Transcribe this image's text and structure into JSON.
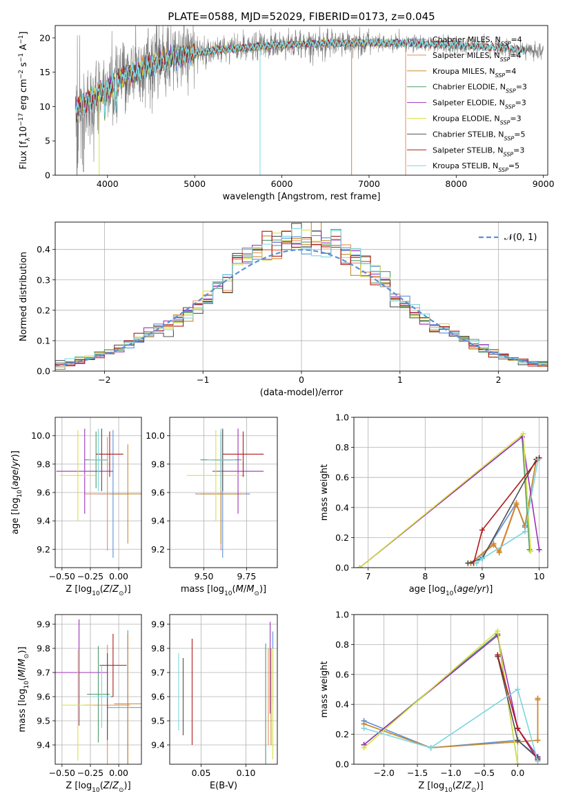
{
  "figure": {
    "title": "PLATE=0588, MJD=52029, FIBERID=0173, z=0.045"
  },
  "models": [
    {
      "name": "Chabrier MILES",
      "nssp": 4,
      "color": "#5a8fd8"
    },
    {
      "name": "Salpeter MILES",
      "nssp": 4,
      "color": "#e88a5c"
    },
    {
      "name": "Kroupa MILES",
      "nssp": 4,
      "color": "#c88a2a"
    },
    {
      "name": "Chabrier ELODIE",
      "nssp": 3,
      "color": "#4f9a6a"
    },
    {
      "name": "Salpeter ELODIE",
      "nssp": 3,
      "color": "#9a32b8"
    },
    {
      "name": "Kroupa ELODIE",
      "nssp": 3,
      "color": "#d8e040"
    },
    {
      "name": "Chabrier STELIB",
      "nssp": 5,
      "color": "#505050"
    },
    {
      "name": "Salpeter STELIB",
      "nssp": 3,
      "color": "#b01818"
    },
    {
      "name": "Kroupa STELIB",
      "nssp": 5,
      "color": "#7ad6e0"
    }
  ],
  "chart_data": [
    {
      "id": "spectrum",
      "type": "line",
      "xlabel": "wavelength [Angstrom, rest frame]",
      "ylabel": "Flux [f_λ10^-17 erg cm^-2 s^-1 A^-1]",
      "xlim": [
        3400,
        9050
      ],
      "ylim": [
        0,
        21.8
      ],
      "xticks": [
        4000,
        5000,
        6000,
        7000,
        8000,
        9000
      ],
      "yticks": [
        0,
        5,
        10,
        15,
        20
      ],
      "legend": "right",
      "continuum": {
        "x": [
          3650,
          3800,
          4000,
          4200,
          4500,
          4800,
          5000,
          5300,
          5600,
          6000,
          6500,
          7000,
          7500,
          8000,
          8500,
          8800
        ],
        "y": [
          9.5,
          11.0,
          12.5,
          14.5,
          16.0,
          17.3,
          17.8,
          18.3,
          18.6,
          19.0,
          19.2,
          19.3,
          19.2,
          18.9,
          18.6,
          18.2
        ]
      },
      "data_range": [
        3630,
        9000
      ]
    },
    {
      "id": "residuals",
      "type": "line",
      "xlabel": "(data-model)/error",
      "ylabel": "Normed distribution",
      "xlim": [
        -2.5,
        2.5
      ],
      "ylim": [
        0,
        0.49
      ],
      "xticks": [
        -2,
        -1,
        0,
        1,
        2
      ],
      "yticks": [
        0.0,
        0.1,
        0.2,
        0.3,
        0.4
      ],
      "legend_label": "𝒩(0, 1)",
      "legend": "top-right"
    },
    {
      "id": "age-vs-z",
      "type": "scatter",
      "xlabel": "Z [log10(Z/Z⊙)]",
      "ylabel": "age  [log10(age/yr)]",
      "xlim": [
        -0.56,
        0.2
      ],
      "ylim": [
        9.07,
        10.13
      ],
      "xticks": [
        -0.5,
        -0.25,
        0.0
      ],
      "xticklabels": [
        "−0.50",
        "−0.25",
        "0.00"
      ],
      "yticks": [
        9.2,
        9.4,
        9.6,
        9.8,
        10.0
      ],
      "points": [
        {
          "x": -0.05,
          "y": 9.59,
          "xerr": 0.14,
          "yerr": 0.45
        },
        {
          "x": -0.1,
          "y": 9.59,
          "xerr": 0.2,
          "yerr": 0.4
        },
        {
          "x": 0.08,
          "y": 9.59,
          "xerr": 0.15,
          "yerr": 0.35
        },
        {
          "x": -0.2,
          "y": 9.83,
          "xerr": 0.1,
          "yerr": 0.2
        },
        {
          "x": -0.3,
          "y": 9.75,
          "xerr": 0.25,
          "yerr": 0.3
        },
        {
          "x": -0.36,
          "y": 9.72,
          "xerr": 0.16,
          "yerr": 0.32
        },
        {
          "x": -0.15,
          "y": 9.83,
          "xerr": 0.05,
          "yerr": 0.22
        },
        {
          "x": -0.08,
          "y": 9.87,
          "xerr": 0.12,
          "yerr": 0.16
        },
        {
          "x": -0.18,
          "y": 9.83,
          "xerr": 0.08,
          "yerr": 0.22
        }
      ]
    },
    {
      "id": "age-vs-mass",
      "type": "scatter",
      "xlabel": "mass [log10(M/M⊙)]",
      "ylabel": "",
      "xlim": [
        9.3,
        9.93
      ],
      "ylim": [
        9.07,
        10.13
      ],
      "xticks": [
        9.5,
        9.75
      ],
      "xticklabels": [
        "9.50",
        "9.75"
      ],
      "yticks": [
        9.2,
        9.4,
        9.6,
        9.8,
        10.0
      ],
      "points": [
        {
          "x": 9.61,
          "y": 9.59,
          "xerr": 0.16,
          "yerr": 0.45
        },
        {
          "x": 9.6,
          "y": 9.59,
          "xerr": 0.14,
          "yerr": 0.4
        },
        {
          "x": 9.6,
          "y": 9.59,
          "xerr": 0.12,
          "yerr": 0.35
        },
        {
          "x": 9.6,
          "y": 9.83,
          "xerr": 0.12,
          "yerr": 0.2
        },
        {
          "x": 9.7,
          "y": 9.75,
          "xerr": 0.15,
          "yerr": 0.3
        },
        {
          "x": 9.57,
          "y": 9.72,
          "xerr": 0.17,
          "yerr": 0.32
        },
        {
          "x": 9.61,
          "y": 9.83,
          "xerr": 0.06,
          "yerr": 0.22
        },
        {
          "x": 9.73,
          "y": 9.87,
          "xerr": 0.12,
          "yerr": 0.16
        },
        {
          "x": 9.6,
          "y": 9.83,
          "xerr": 0.08,
          "yerr": 0.22
        }
      ]
    },
    {
      "id": "mass-weight-vs-age",
      "type": "line",
      "xlabel": "age  [log10(age/yr)]",
      "ylabel": "mass weight",
      "xlim": [
        6.75,
        10.15
      ],
      "ylim": [
        0,
        1.0
      ],
      "xticks": [
        7,
        8,
        9,
        10
      ],
      "yticks": [
        0.0,
        0.2,
        0.4,
        0.6,
        0.8,
        1.0
      ],
      "series": [
        {
          "x": [
            8.8,
            9.0,
            9.6,
            9.75,
            9.95
          ],
          "y": [
            0.03,
            0.07,
            0.43,
            0.27,
            0.72
          ]
        },
        {
          "x": [
            8.8,
            9.2,
            9.3,
            9.6,
            9.75,
            9.95
          ],
          "y": [
            0.03,
            0.15,
            0.11,
            0.43,
            0.28,
            0.72
          ]
        },
        {
          "x": [
            8.8,
            9.2,
            9.3,
            9.6,
            9.75,
            9.95
          ],
          "y": [
            0.03,
            0.16,
            0.1,
            0.42,
            0.28,
            0.72
          ]
        },
        {
          "x": [
            6.85,
            9.7,
            9.83
          ],
          "y": [
            0.0,
            0.87,
            0.12
          ]
        },
        {
          "x": [
            6.85,
            9.7,
            10.0
          ],
          "y": [
            0.0,
            0.87,
            0.12
          ]
        },
        {
          "x": [
            6.85,
            9.72,
            9.85
          ],
          "y": [
            0.0,
            0.89,
            0.11
          ]
        },
        {
          "x": [
            8.75,
            9.0,
            9.95
          ],
          "y": [
            0.03,
            0.06,
            0.72
          ]
        },
        {
          "x": [
            8.85,
            9.0,
            10.0
          ],
          "y": [
            0.03,
            0.25,
            0.73
          ]
        },
        {
          "x": [
            8.9,
            9.0,
            9.75,
            9.98
          ],
          "y": [
            0.03,
            0.06,
            0.24,
            0.72
          ]
        }
      ]
    },
    {
      "id": "mass-vs-z",
      "type": "scatter",
      "xlabel": "Z [log10(Z/Z⊙)]",
      "ylabel": "mass [log10(M/M⊙)]",
      "xlim": [
        -0.56,
        0.2
      ],
      "ylim": [
        9.32,
        9.94
      ],
      "xticks": [
        -0.5,
        -0.25,
        0.0
      ],
      "xticklabels": [
        "−0.50",
        "−0.25",
        "0.00"
      ],
      "yticks": [
        9.4,
        9.5,
        9.6,
        9.7,
        9.8,
        9.9
      ],
      "points": [
        {
          "x": 0.08,
          "y": 9.555,
          "xerr": 0.18,
          "yerr": 0.32
        },
        {
          "x": -0.1,
          "y": 9.565,
          "xerr": 0.2,
          "yerr": 0.25
        },
        {
          "x": 0.08,
          "y": 9.57,
          "xerr": 0.12,
          "yerr": 0.29
        },
        {
          "x": -0.18,
          "y": 9.61,
          "xerr": 0.1,
          "yerr": 0.2
        },
        {
          "x": -0.35,
          "y": 9.7,
          "xerr": 0.25,
          "yerr": 0.22
        },
        {
          "x": -0.36,
          "y": 9.565,
          "xerr": 0.14,
          "yerr": 0.23
        },
        {
          "x": -0.1,
          "y": 9.6,
          "xerr": 0.05,
          "yerr": 0.18
        },
        {
          "x": -0.05,
          "y": 9.73,
          "xerr": 0.12,
          "yerr": 0.13
        },
        {
          "x": -0.15,
          "y": 9.6,
          "xerr": 0.08,
          "yerr": 0.13
        }
      ]
    },
    {
      "id": "mass-vs-ebv",
      "type": "scatter",
      "xlabel": "E(B-V)",
      "ylabel": "",
      "xlim": [
        0.015,
        0.135
      ],
      "ylim": [
        9.32,
        9.94
      ],
      "xticks": [
        0.05,
        0.1
      ],
      "xticklabels": [
        "0.05",
        "0.10"
      ],
      "yticks": [
        9.4,
        9.5,
        9.6,
        9.7,
        9.8,
        9.9
      ],
      "points": [
        {
          "x": 0.13,
          "y": 9.72,
          "yerr": 0.15
        },
        {
          "x": 0.125,
          "y": 9.6,
          "yerr": 0.2
        },
        {
          "x": 0.128,
          "y": 9.6,
          "yerr": 0.2
        },
        {
          "x": 0.122,
          "y": 9.57,
          "yerr": 0.25
        },
        {
          "x": 0.127,
          "y": 9.72,
          "yerr": 0.19
        },
        {
          "x": 0.13,
          "y": 9.57,
          "yerr": 0.23
        },
        {
          "x": 0.03,
          "y": 9.6,
          "yerr": 0.16
        },
        {
          "x": 0.04,
          "y": 9.62,
          "yerr": 0.22
        },
        {
          "x": 0.025,
          "y": 9.62,
          "yerr": 0.16
        }
      ]
    },
    {
      "id": "mass-weight-vs-z",
      "type": "line",
      "xlabel": "Z [log10(Z/Z⊙)]",
      "ylabel": "mass weight",
      "xlim": [
        -2.45,
        0.45
      ],
      "ylim": [
        0,
        1.0
      ],
      "xticks": [
        -2.0,
        -1.5,
        -1.0,
        -0.5,
        0.0
      ],
      "xticklabels": [
        "−2.0",
        "−1.5",
        "−1.0",
        "−0.5",
        "0.0"
      ],
      "yticks": [
        0.0,
        0.2,
        0.4,
        0.6,
        0.8,
        1.0
      ],
      "series": [
        {
          "x": [
            -2.3,
            -1.3,
            0.0,
            0.3,
            0.3
          ],
          "y": [
            0.29,
            0.11,
            0.16,
            0.05,
            0.03
          ]
        },
        {
          "x": [
            -2.3,
            -1.3,
            0.0,
            0.3,
            0.3
          ],
          "y": [
            0.27,
            0.11,
            0.15,
            0.16,
            0.43
          ]
        },
        {
          "x": [
            -2.3,
            -1.3,
            0.0,
            0.3,
            0.3
          ],
          "y": [
            0.27,
            0.11,
            0.15,
            0.16,
            0.44
          ]
        },
        {
          "x": [
            -2.3,
            -0.3,
            0.0
          ],
          "y": [
            0.13,
            0.87,
            0.0
          ]
        },
        {
          "x": [
            -2.3,
            -0.3,
            0.0,
            0.3
          ],
          "y": [
            0.13,
            0.86,
            0.24,
            0.05
          ]
        },
        {
          "x": [
            -2.3,
            -0.3,
            0.0
          ],
          "y": [
            0.11,
            0.89,
            0.0
          ]
        },
        {
          "x": [
            -0.3,
            0.0,
            0.3
          ],
          "y": [
            0.72,
            0.16,
            0.04
          ]
        },
        {
          "x": [
            -0.3,
            0.0,
            0.3
          ],
          "y": [
            0.73,
            0.24,
            0.03
          ]
        },
        {
          "x": [
            -2.3,
            -1.3,
            0.0,
            0.3
          ],
          "y": [
            0.24,
            0.11,
            0.5,
            0.02
          ]
        }
      ]
    }
  ]
}
